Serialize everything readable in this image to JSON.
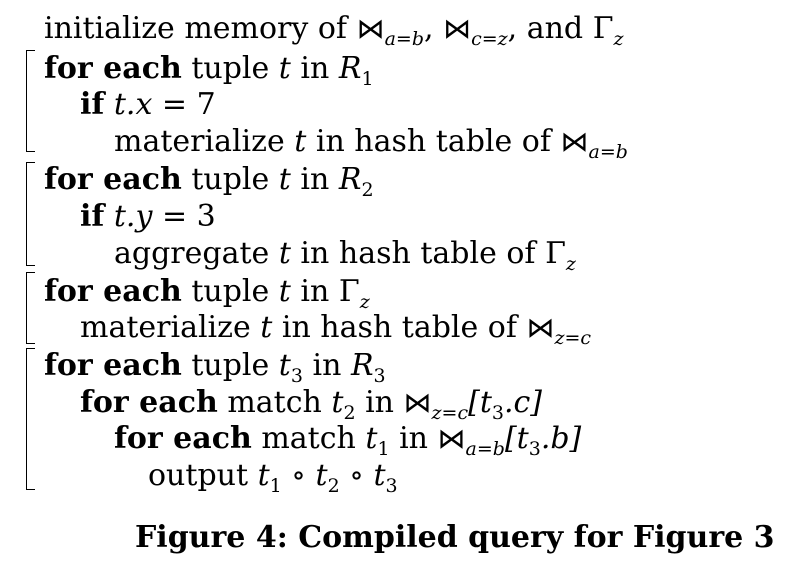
{
  "code": {
    "init": {
      "prefix": "initialize memory of ",
      "bowtie": "⋈",
      "sub1": "a=b",
      "sep": ", ",
      "sub2": "c=z",
      "and": ", and ",
      "gamma": "Γ",
      "gamma_sub": "z"
    },
    "block1": {
      "for_kw": "for each",
      "for_rest": " tuple ",
      "var": "t",
      "in": " in ",
      "rel": "R",
      "rel_sub": "1",
      "if_kw": "if",
      "cond_var": "t.x",
      "cond_rest": " = 7",
      "body_prefix": "materialize ",
      "body_var": "t",
      "body_mid": " in hash table of ",
      "body_bowtie": "⋈",
      "body_sub": "a=b"
    },
    "block2": {
      "for_kw": "for each",
      "for_rest": " tuple ",
      "var": "t",
      "in": " in ",
      "rel": "R",
      "rel_sub": "2",
      "if_kw": "if",
      "cond_var": "t.y",
      "cond_rest": " = 3",
      "body_prefix": "aggregate ",
      "body_var": "t",
      "body_mid": " in hash table of ",
      "body_gamma": "Γ",
      "body_sub": "z"
    },
    "block3": {
      "for_kw": "for each",
      "for_rest": " tuple ",
      "var": "t",
      "in": " in ",
      "gamma": "Γ",
      "gamma_sub": "z",
      "body_prefix": "materialize ",
      "body_var": "t",
      "body_mid": " in hash table of ",
      "body_bowtie": "⋈",
      "body_sub": "z=c"
    },
    "block4": {
      "for_kw": "for each",
      "for_rest": " tuple ",
      "var": "t",
      "var_sub": "3",
      "in": " in ",
      "rel": "R",
      "rel_sub": "3",
      "m1_kw": "for each",
      "m1_rest": " match ",
      "m1_var": "t",
      "m1_var_sub": "2",
      "m1_in": " in ",
      "m1_bowtie": "⋈",
      "m1_sub": "z=c",
      "m1_idx": "[t",
      "m1_idx_sub": "3",
      "m1_idx_end": ".c]",
      "m2_kw": "for each",
      "m2_rest": " match ",
      "m2_var": "t",
      "m2_var_sub": "1",
      "m2_in": " in ",
      "m2_bowtie": "⋈",
      "m2_sub": "a=b",
      "m2_idx": "[t",
      "m2_idx_sub": "3",
      "m2_idx_end": ".b]",
      "out_prefix": "output ",
      "out_t1": "t",
      "out_t1_sub": "1",
      "op1": " ∘ ",
      "out_t2": "t",
      "out_t2_sub": "2",
      "op2": " ∘ ",
      "out_t3": "t",
      "out_t3_sub": "3"
    }
  },
  "caption": "Figure 4: Compiled query for Figure 3"
}
